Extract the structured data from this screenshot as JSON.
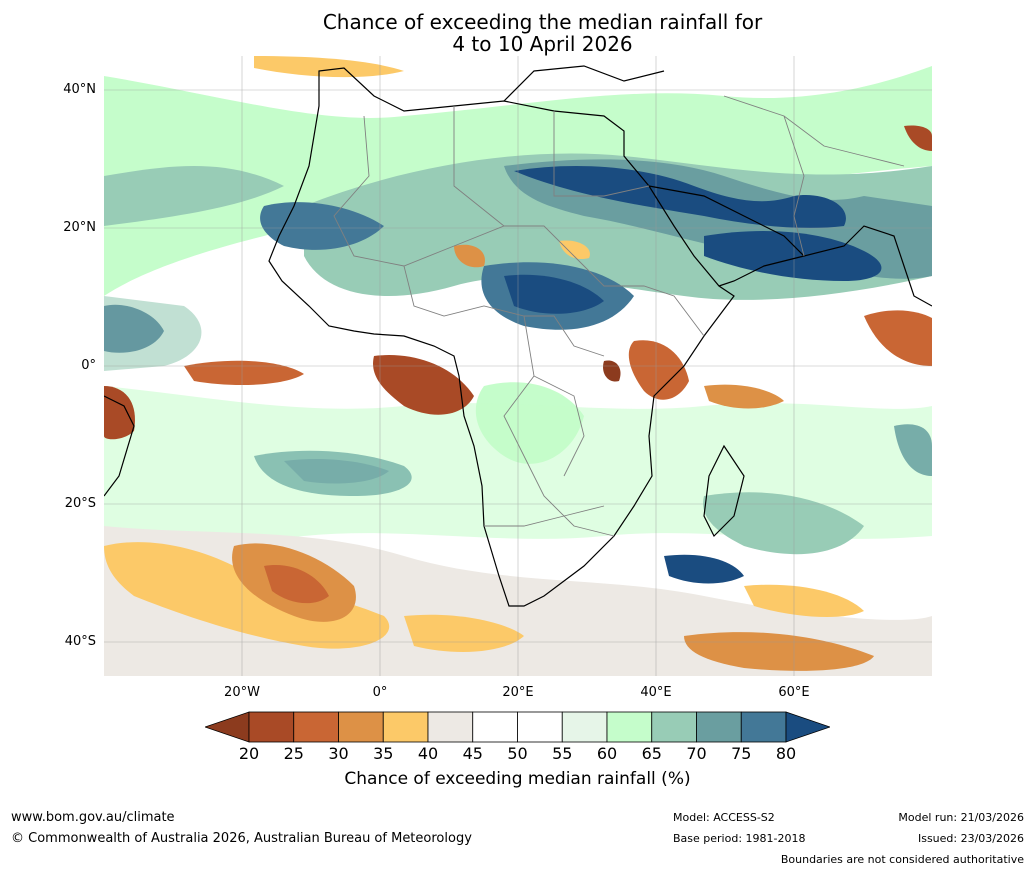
{
  "title": {
    "line1": "Chance of exceeding the median rainfall for",
    "line2": "4 to 10 April 2026"
  },
  "map": {
    "latitude_labels": [
      "40°N",
      "20°N",
      "0°",
      "20°S",
      "40°S"
    ],
    "longitude_labels": [
      "20°W",
      "0°",
      "20°E",
      "40°E",
      "60°E"
    ],
    "extent": {
      "lon": [
        -40,
        80
      ],
      "lat": [
        -45,
        45
      ]
    },
    "colors": {
      "ocean_land_default": "#ffffff",
      "coastline": "#000000",
      "borders": "#808080"
    }
  },
  "colorbar": {
    "label": "Chance of exceeding median rainfall (%)",
    "ticks": [
      "20",
      "25",
      "30",
      "35",
      "40",
      "45",
      "50",
      "55",
      "60",
      "65",
      "70",
      "75",
      "80"
    ],
    "colors": [
      "#8c3b1e",
      "#a94a26",
      "#c96634",
      "#dd9146",
      "#fcc968",
      "#ede9e4",
      "#ffffff",
      "#ffffff",
      "#e6f5e8",
      "#c5fdcb",
      "#98ccb6",
      "#6a9ea0",
      "#437897",
      "#1a4c80"
    ]
  },
  "footer": {
    "website": "www.bom.gov.au/climate",
    "copyright": "© Commonwealth of Australia 2026, Australian Bureau of Meteorology",
    "model": "Model: ACCESS-S2",
    "base_period": "Base period: 1981-2018",
    "model_run": "Model run: 21/03/2026",
    "issued": "Issued: 23/03/2026",
    "disclaimer": "Boundaries are not considered authoritative"
  }
}
